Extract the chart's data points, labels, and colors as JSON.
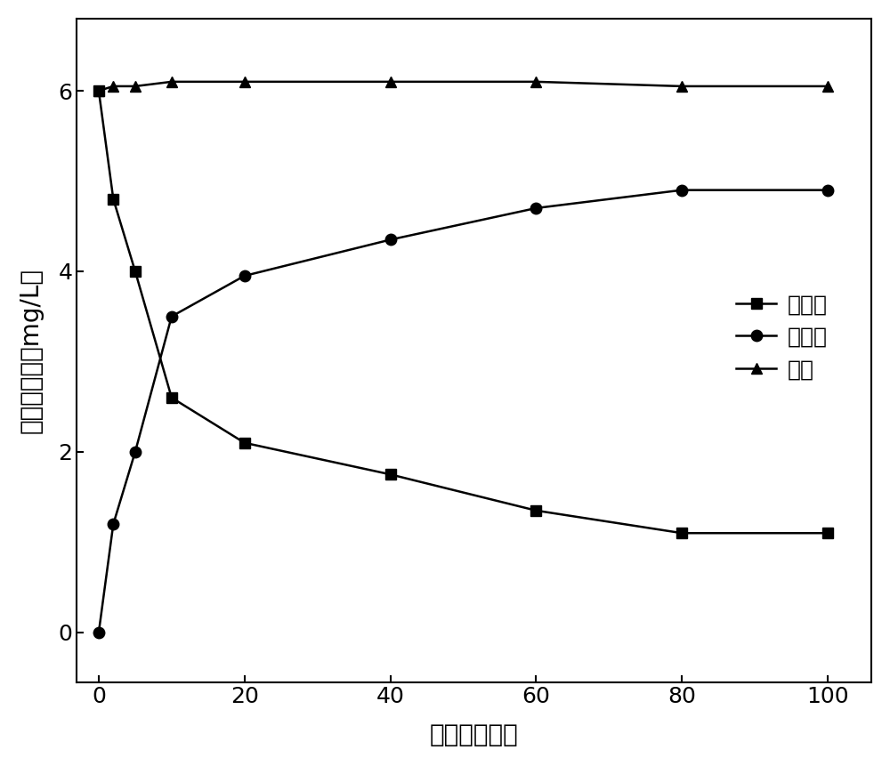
{
  "x": [
    0,
    2,
    5,
    10,
    20,
    40,
    60,
    80,
    100
  ],
  "youji_lin": [
    6.0,
    4.8,
    4.0,
    2.6,
    2.1,
    1.75,
    1.35,
    1.1,
    1.1
  ],
  "wuji_lin": [
    0.0,
    1.2,
    2.0,
    3.5,
    3.95,
    4.35,
    4.7,
    4.9,
    4.9
  ],
  "zong_lin": [
    6.0,
    6.05,
    6.05,
    6.1,
    6.1,
    6.1,
    6.1,
    6.05,
    6.05
  ],
  "xlabel": "时间（分钟）",
  "ylabel": "残留磷浓度（mg/L）",
  "legend_youji": "有机磷",
  "legend_wuji": "无机磷",
  "legend_zong": "总磷",
  "xlim": [
    -3,
    106
  ],
  "ylim": [
    -0.55,
    6.8
  ],
  "xticks": [
    0,
    20,
    40,
    60,
    80,
    100
  ],
  "yticks": [
    0,
    2,
    4,
    6
  ],
  "line_color": "#000000",
  "marker_square": "s",
  "marker_circle": "o",
  "marker_triangle": "^",
  "markersize": 9,
  "linewidth": 1.8,
  "tick_fontsize": 18,
  "label_fontsize": 20,
  "legend_fontsize": 18
}
